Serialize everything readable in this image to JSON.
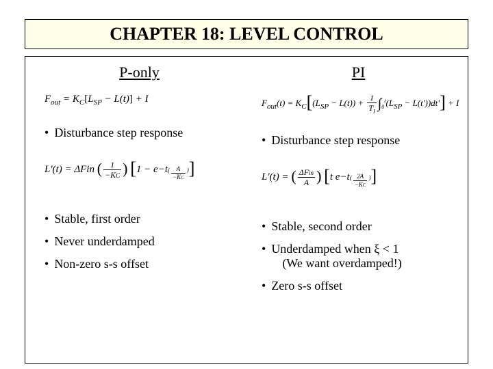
{
  "title": "CHAPTER 18: LEVEL CONTROL",
  "left": {
    "header": "P-only",
    "eq_fout": "Fout(t) = KC [LSP − L(t)] + I",
    "bullet_disturbance": "Disturbance step response",
    "eq_lprime": "L'(t) = ΔFin (1 / −KC) [1 − e^(−t (A / −KC))]",
    "b1": "Stable, first order",
    "b2": "Never underdamped",
    "b3": "Non-zero s-s offset"
  },
  "right": {
    "header": "PI",
    "eq_fout": "Fout(t) = KC [(LSP − L(t)) + (1/TI) ∫0^t (LSP − L(t')) dt'] + I",
    "bullet_disturbance": "Disturbance step response",
    "eq_lprime": "L'(t) = (ΔFin / A) t e^(−t (2A / −KC))",
    "b1": "Stable, second order",
    "b2": "Underdamped when ξ < 1",
    "b2_sub": "(We want overdamped!)",
    "b3": "Zero s-s offset"
  },
  "colors": {
    "title_bg": "#ffffe8",
    "border": "#000000",
    "bg": "#ffffff"
  }
}
